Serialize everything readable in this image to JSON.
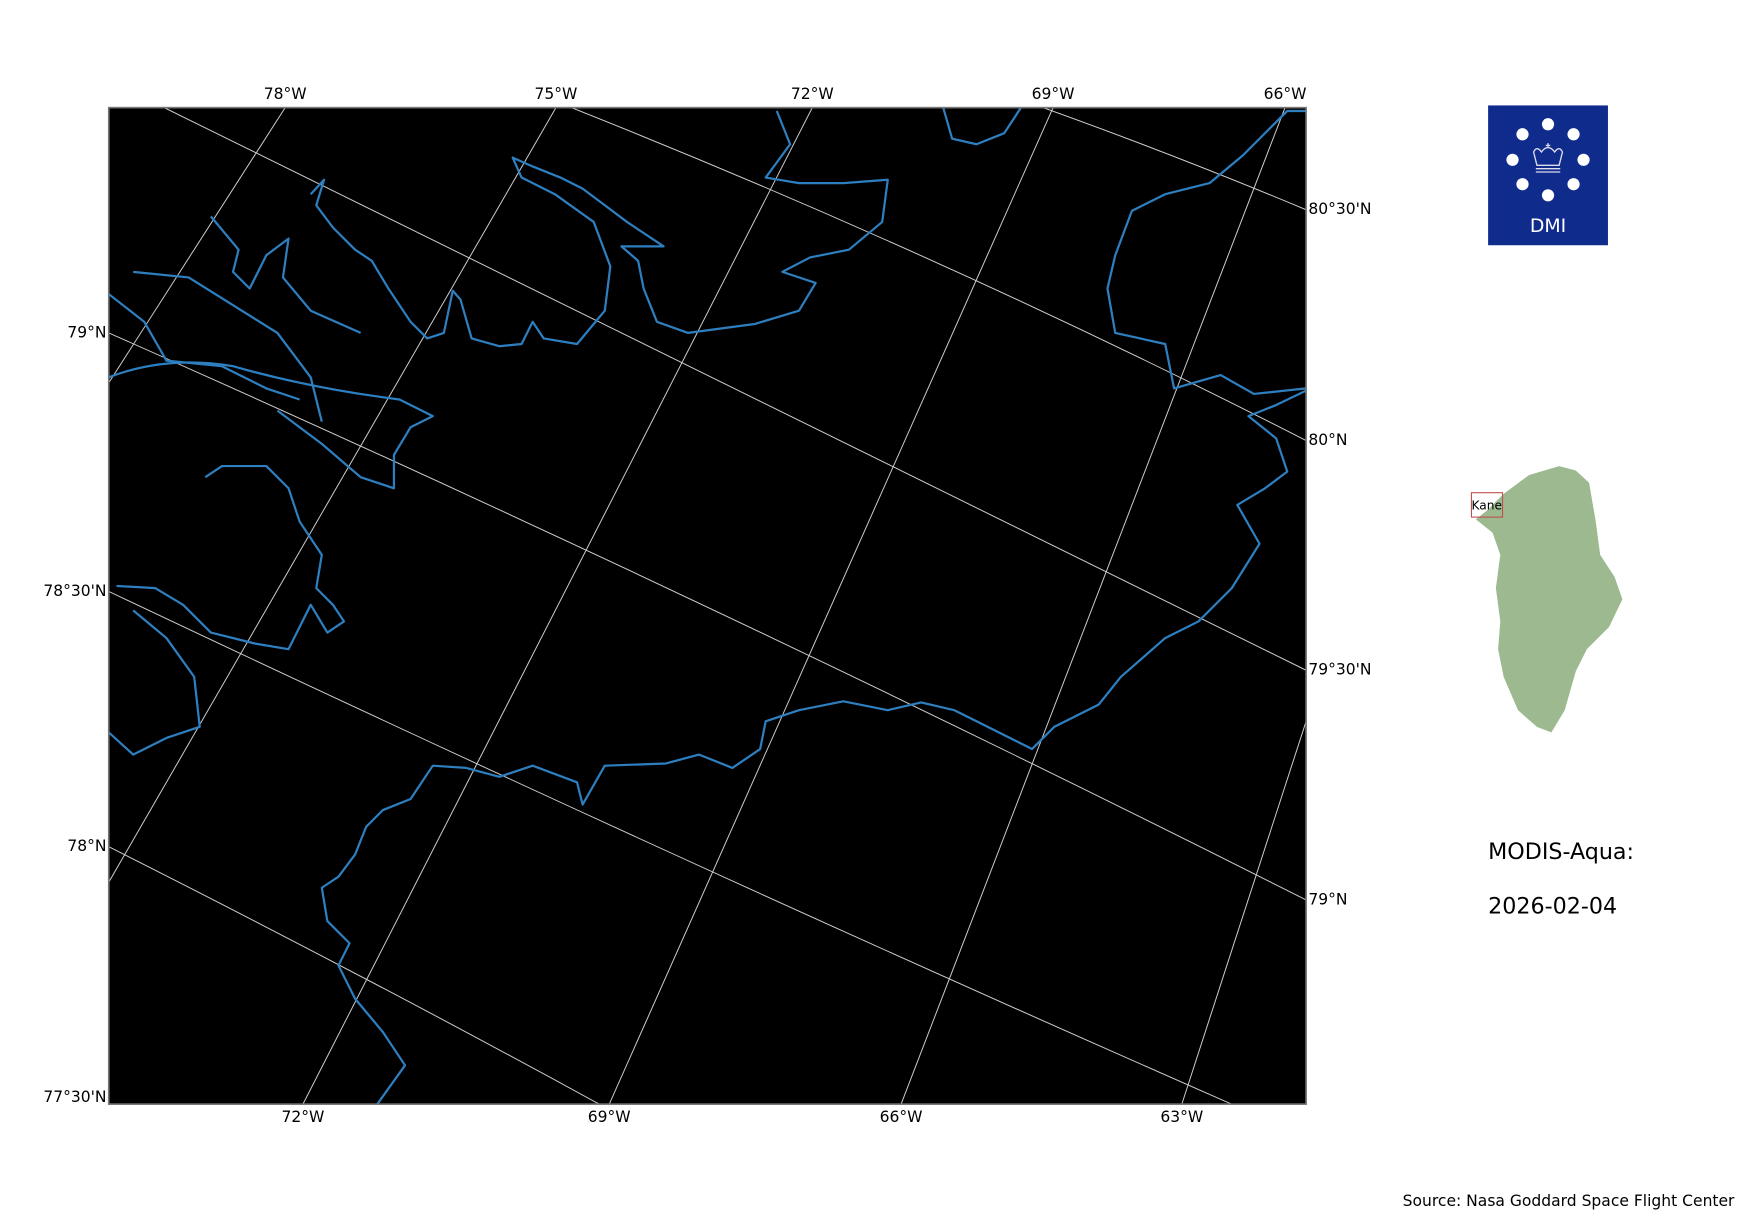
{
  "map": {
    "background_color": "#000000",
    "coastline_color": "#2e7fc0",
    "gridline_color": "#cccccc",
    "top_labels": [
      "78°W",
      "75°W",
      "72°W",
      "69°W",
      "66°W"
    ],
    "bottom_labels": [
      "72°W",
      "69°W",
      "66°W",
      "63°W"
    ],
    "left_labels": [
      "79°N",
      "78°30'N",
      "78°N",
      "77°30'N"
    ],
    "right_labels": [
      "80°30'N",
      "80°N",
      "79°30'N",
      "79°N"
    ]
  },
  "logo": {
    "text": "DMI",
    "color": "#0f2b8c"
  },
  "inset": {
    "region_label": "Kane",
    "land_color": "#9cb98f",
    "box_color": "#c0504d"
  },
  "info": {
    "sensor": "MODIS-Aqua:",
    "date": "2026-02-04"
  },
  "source": "Source: Nasa Goddard Space Flight Center"
}
